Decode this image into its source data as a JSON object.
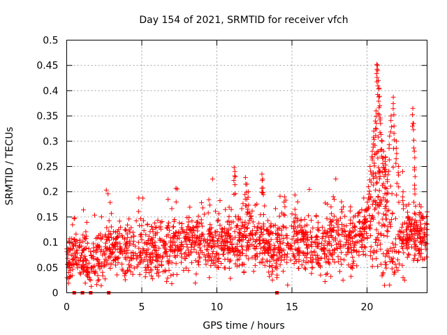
{
  "chart_data": {
    "type": "scatter",
    "title": "Day 154 of 2021, SRMTID for receiver vfch",
    "xlabel": "GPS time / hours",
    "ylabel": "SRMTID / TECUs",
    "xlim": [
      0,
      24
    ],
    "ylim": [
      0,
      0.5
    ],
    "grid": true,
    "marker": "+",
    "marker_color": "#ff0000",
    "x_ticks": [
      0,
      5,
      10,
      15,
      20
    ],
    "x_tick_labels": [
      "0",
      "5",
      "10",
      "15",
      "20"
    ],
    "y_ticks": [
      0,
      0.05,
      0.1,
      0.15,
      0.2,
      0.25,
      0.3,
      0.35,
      0.4,
      0.45,
      0.5
    ],
    "y_tick_labels": [
      "0",
      "0.05",
      "0.1",
      "0.15",
      "0.2",
      "0.25",
      "0.3",
      "0.35",
      "0.4",
      "0.45",
      "0.5"
    ],
    "zero_markers_x": [
      0.5,
      1.05,
      1.6,
      2.8,
      14.0
    ],
    "trend": [
      {
        "x": 0.0,
        "y": 0.06
      },
      {
        "x": 0.5,
        "y": 0.08
      },
      {
        "x": 1.0,
        "y": 0.075
      },
      {
        "x": 1.5,
        "y": 0.05
      },
      {
        "x": 2.0,
        "y": 0.065
      },
      {
        "x": 3.0,
        "y": 0.085
      },
      {
        "x": 4.0,
        "y": 0.09
      },
      {
        "x": 5.0,
        "y": 0.085
      },
      {
        "x": 6.0,
        "y": 0.085
      },
      {
        "x": 7.0,
        "y": 0.09
      },
      {
        "x": 8.0,
        "y": 0.1
      },
      {
        "x": 9.0,
        "y": 0.1
      },
      {
        "x": 10.0,
        "y": 0.095
      },
      {
        "x": 11.0,
        "y": 0.1
      },
      {
        "x": 12.0,
        "y": 0.11
      },
      {
        "x": 13.0,
        "y": 0.1
      },
      {
        "x": 14.0,
        "y": 0.09
      },
      {
        "x": 15.0,
        "y": 0.105
      },
      {
        "x": 16.0,
        "y": 0.1
      },
      {
        "x": 17.0,
        "y": 0.095
      },
      {
        "x": 18.0,
        "y": 0.1
      },
      {
        "x": 19.0,
        "y": 0.105
      },
      {
        "x": 20.0,
        "y": 0.12
      },
      {
        "x": 20.5,
        "y": 0.17
      },
      {
        "x": 21.0,
        "y": 0.17
      },
      {
        "x": 21.5,
        "y": 0.1
      },
      {
        "x": 22.0,
        "y": 0.09
      },
      {
        "x": 22.5,
        "y": 0.11
      },
      {
        "x": 23.0,
        "y": 0.12
      },
      {
        "x": 24.0,
        "y": 0.1
      }
    ],
    "spread": 0.028,
    "points_per_hour": 80,
    "peaks": [
      {
        "x": 11.15,
        "y": 0.248
      },
      {
        "x": 11.2,
        "y": 0.24
      },
      {
        "x": 11.9,
        "y": 0.228
      },
      {
        "x": 12.0,
        "y": 0.215
      },
      {
        "x": 12.1,
        "y": 0.2
      },
      {
        "x": 13.0,
        "y": 0.235
      },
      {
        "x": 13.05,
        "y": 0.225
      },
      {
        "x": 14.5,
        "y": 0.19
      },
      {
        "x": 15.2,
        "y": 0.165
      },
      {
        "x": 17.6,
        "y": 0.17
      },
      {
        "x": 18.3,
        "y": 0.18
      },
      {
        "x": 18.9,
        "y": 0.17
      },
      {
        "x": 20.1,
        "y": 0.21
      },
      {
        "x": 20.2,
        "y": 0.25
      },
      {
        "x": 20.35,
        "y": 0.28
      },
      {
        "x": 20.45,
        "y": 0.32
      },
      {
        "x": 20.55,
        "y": 0.34
      },
      {
        "x": 20.6,
        "y": 0.36
      },
      {
        "x": 20.65,
        "y": 0.452
      },
      {
        "x": 20.7,
        "y": 0.45
      },
      {
        "x": 20.75,
        "y": 0.42
      },
      {
        "x": 20.8,
        "y": 0.405
      },
      {
        "x": 20.85,
        "y": 0.37
      },
      {
        "x": 20.9,
        "y": 0.335
      },
      {
        "x": 21.0,
        "y": 0.3
      },
      {
        "x": 21.1,
        "y": 0.28
      },
      {
        "x": 21.2,
        "y": 0.26
      },
      {
        "x": 21.35,
        "y": 0.22
      },
      {
        "x": 21.5,
        "y": 0.31
      },
      {
        "x": 21.6,
        "y": 0.35
      },
      {
        "x": 21.75,
        "y": 0.387
      },
      {
        "x": 21.8,
        "y": 0.33
      },
      {
        "x": 21.95,
        "y": 0.3
      },
      {
        "x": 22.1,
        "y": 0.25
      },
      {
        "x": 22.4,
        "y": 0.2
      },
      {
        "x": 23.05,
        "y": 0.365
      },
      {
        "x": 23.1,
        "y": 0.335
      },
      {
        "x": 23.15,
        "y": 0.28
      },
      {
        "x": 23.2,
        "y": 0.23
      },
      {
        "x": 23.6,
        "y": 0.17
      },
      {
        "x": 24.0,
        "y": 0.16
      }
    ],
    "lows": [
      {
        "x": 1.5,
        "y": 0.03
      },
      {
        "x": 1.6,
        "y": 0.025
      },
      {
        "x": 7.0,
        "y": 0.018
      },
      {
        "x": 9.5,
        "y": 0.03
      },
      {
        "x": 11.8,
        "y": 0.04
      },
      {
        "x": 14.0,
        "y": 0.03
      },
      {
        "x": 16.9,
        "y": 0.035
      },
      {
        "x": 18.4,
        "y": 0.025
      },
      {
        "x": 22.4,
        "y": 0.03
      },
      {
        "x": 22.5,
        "y": 0.025
      }
    ]
  }
}
